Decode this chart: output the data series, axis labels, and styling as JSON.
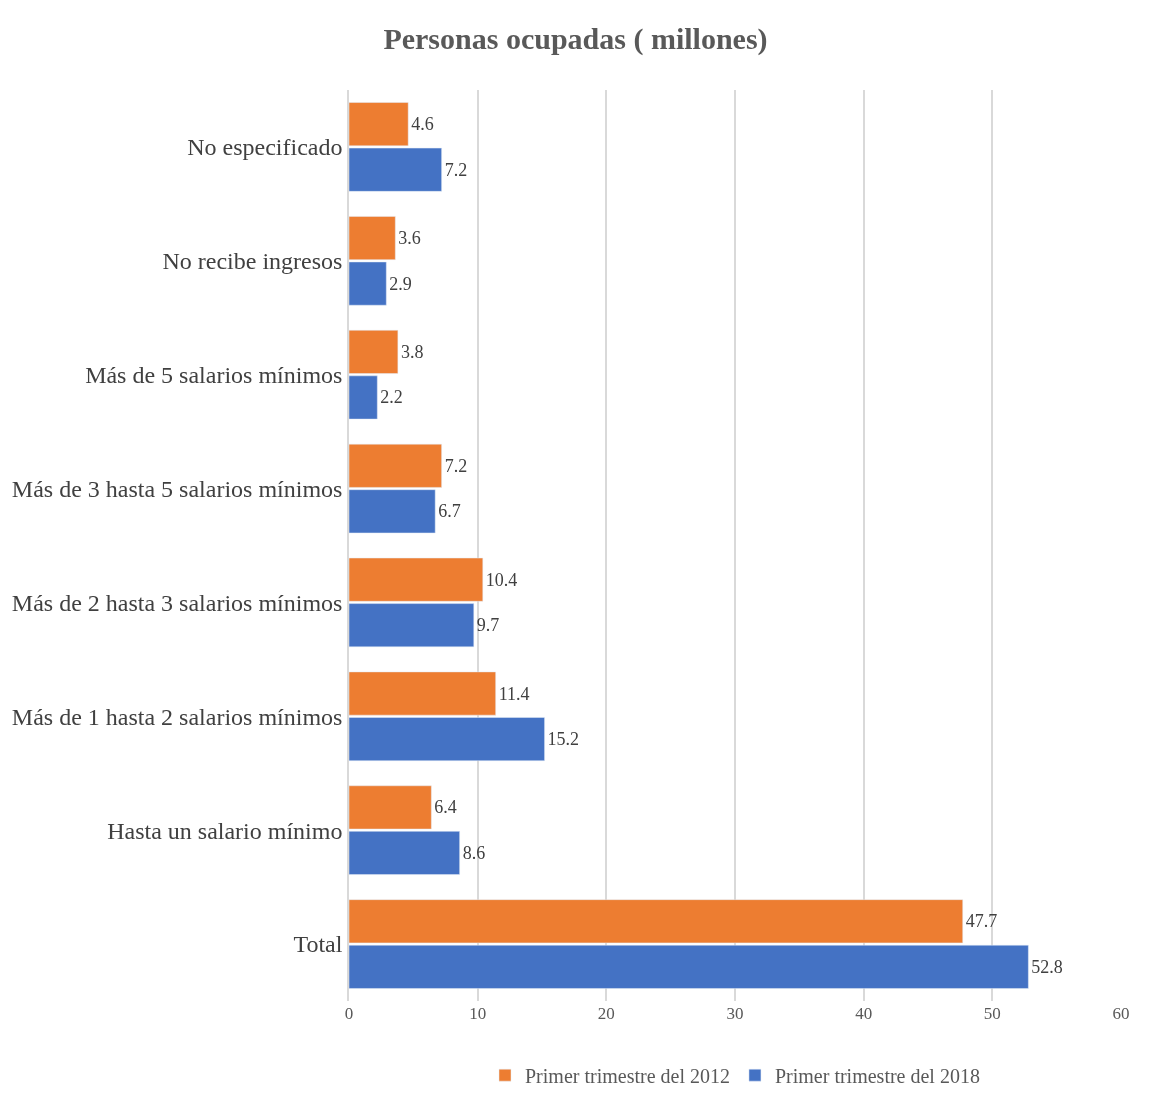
{
  "chart_data": {
    "type": "bar",
    "orientation": "horizontal",
    "title": "Personas ocupadas ( millones)",
    "categories": [
      "No especificado",
      "No recibe ingresos",
      "Más de 5 salarios mínimos",
      "Más de 3 hasta 5 salarios mínimos",
      "Más de 2 hasta 3 salarios mínimos",
      "Más de 1 hasta 2 salarios mínimos",
      "Hasta un salario mínimo",
      "Total"
    ],
    "series": [
      {
        "name": "Primer trimestre del 2012",
        "color": "#ed7d31",
        "values": [
          4.6,
          3.6,
          3.8,
          7.2,
          10.4,
          11.4,
          6.4,
          47.7
        ]
      },
      {
        "name": "Primer trimestre del 2018",
        "color": "#4472c4",
        "values": [
          7.2,
          2.9,
          2.2,
          6.7,
          9.7,
          15.2,
          8.6,
          52.8
        ]
      }
    ],
    "xlim": [
      0,
      60
    ],
    "xticks": [
      0,
      10,
      20,
      30,
      40,
      50,
      60
    ],
    "grid": "x",
    "legend": "bottom",
    "data_labels": true
  }
}
